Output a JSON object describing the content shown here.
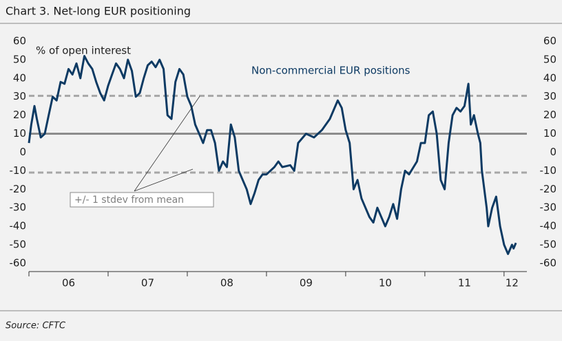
{
  "chart_data": {
    "type": "line",
    "title": "Chart 3. Net-long EUR positioning",
    "y_label": "% of open interest",
    "source": "Source: CFTC",
    "annotation": "+/- 1 stdev from mean",
    "ylim": [
      -64.5,
      60
    ],
    "yticks": [
      60,
      50,
      40,
      30,
      20,
      10,
      0,
      -10,
      -20,
      -30,
      -40,
      -50,
      -60
    ],
    "xlim": [
      2006,
      2012.21
    ],
    "xticks": [
      {
        "value": 2006.5,
        "label": "06"
      },
      {
        "value": 2007.5,
        "label": "07"
      },
      {
        "value": 2008.5,
        "label": "08"
      },
      {
        "value": 2009.5,
        "label": "09"
      },
      {
        "value": 2010.5,
        "label": "10"
      },
      {
        "value": 2011.5,
        "label": "11"
      },
      {
        "value": 2012.1,
        "label": "12"
      }
    ],
    "xminor": [
      2006,
      2007,
      2008,
      2009,
      2010,
      2011,
      2012
    ],
    "reference_lines": [
      {
        "value": 30.5,
        "style": "dashed"
      },
      {
        "value": 10,
        "style": "solid"
      },
      {
        "value": -11,
        "style": "dashed"
      }
    ],
    "series": [
      {
        "name": "Non-commercial EUR positions",
        "color": "#0d3a63",
        "x": [
          2006.0,
          2006.03,
          2006.07,
          2006.1,
          2006.15,
          2006.2,
          2006.25,
          2006.3,
          2006.35,
          2006.4,
          2006.45,
          2006.5,
          2006.55,
          2006.6,
          2006.65,
          2006.7,
          2006.75,
          2006.8,
          2006.85,
          2006.9,
          2006.95,
          2007.0,
          2007.05,
          2007.1,
          2007.15,
          2007.2,
          2007.25,
          2007.3,
          2007.35,
          2007.4,
          2007.45,
          2007.5,
          2007.55,
          2007.6,
          2007.65,
          2007.7,
          2007.75,
          2007.8,
          2007.85,
          2007.9,
          2007.95,
          2008.0,
          2008.05,
          2008.1,
          2008.15,
          2008.2,
          2008.25,
          2008.3,
          2008.35,
          2008.4,
          2008.45,
          2008.5,
          2008.55,
          2008.6,
          2008.65,
          2008.7,
          2008.75,
          2008.8,
          2008.85,
          2008.9,
          2008.95,
          2009.0,
          2009.1,
          2009.15,
          2009.2,
          2009.3,
          2009.35,
          2009.4,
          2009.5,
          2009.6,
          2009.7,
          2009.8,
          2009.9,
          2009.95,
          2010.0,
          2010.05,
          2010.1,
          2010.15,
          2010.2,
          2010.3,
          2010.35,
          2010.4,
          2010.45,
          2010.5,
          2010.55,
          2010.6,
          2010.65,
          2010.7,
          2010.75,
          2010.8,
          2010.9,
          2010.95,
          2011.0,
          2011.05,
          2011.1,
          2011.15,
          2011.2,
          2011.25,
          2011.3,
          2011.35,
          2011.4,
          2011.45,
          2011.5,
          2011.55,
          2011.58,
          2011.62,
          2011.67,
          2011.7,
          2011.72,
          2011.78,
          2011.8,
          2011.85,
          2011.9,
          2011.95,
          2012.0,
          2012.05,
          2012.1,
          2012.12,
          2012.15
        ],
        "values": [
          5,
          15,
          25,
          18,
          8,
          10,
          20,
          30,
          28,
          38,
          37,
          45,
          42,
          48,
          40,
          52,
          48,
          45,
          38,
          32,
          28,
          36,
          42,
          48,
          45,
          40,
          50,
          44,
          30,
          32,
          40,
          47,
          49,
          46,
          50,
          45,
          20,
          18,
          38,
          45,
          42,
          30,
          25,
          15,
          10,
          5,
          12,
          12,
          5,
          -10,
          -5,
          -8,
          15,
          8,
          -10,
          -15,
          -20,
          -28,
          -22,
          -15,
          -12,
          -12,
          -8,
          -5,
          -8,
          -7,
          -10,
          5,
          10,
          8,
          12,
          18,
          28,
          24,
          12,
          5,
          -20,
          -15,
          -25,
          -35,
          -38,
          -30,
          -35,
          -40,
          -35,
          -28,
          -36,
          -20,
          -10,
          -12,
          -5,
          5,
          5,
          20,
          22,
          10,
          -15,
          -20,
          5,
          20,
          24,
          22,
          25,
          37,
          15,
          20,
          10,
          5,
          -10,
          -30,
          -40,
          -30,
          -24,
          -40,
          -50,
          -55,
          -50,
          -52,
          -49
        ]
      }
    ]
  }
}
